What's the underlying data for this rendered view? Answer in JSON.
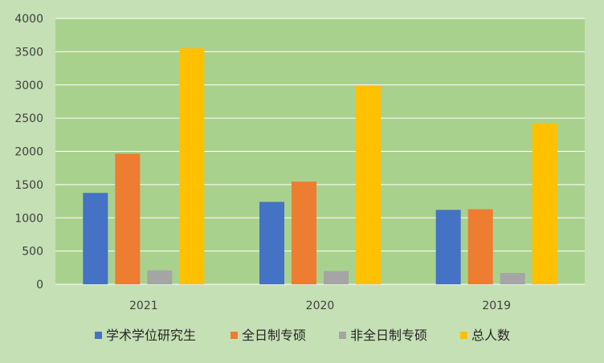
{
  "chart_data": {
    "type": "bar",
    "categories": [
      "2021",
      "2020",
      "2019"
    ],
    "series": [
      {
        "name": "学术学位研究生",
        "color": "#4472c4",
        "values": [
          1375,
          1240,
          1120
        ]
      },
      {
        "name": "全日制专硕",
        "color": "#ed7d31",
        "values": [
          1965,
          1545,
          1130
        ]
      },
      {
        "name": "非全日制专硕",
        "color": "#a5a5a5",
        "values": [
          210,
          200,
          170
        ]
      },
      {
        "name": "总人数",
        "color": "#ffc000",
        "values": [
          3550,
          2985,
          2420
        ]
      }
    ],
    "ylim": [
      0,
      4000
    ],
    "yticks": [
      0,
      500,
      1000,
      1500,
      2000,
      2500,
      3000,
      3500,
      4000
    ],
    "grid": true,
    "legend_position": "bottom",
    "colors": {
      "plot_background": "#a9d18e",
      "chart_background": "#c5e0b4",
      "gridline": "#ffffff"
    }
  }
}
